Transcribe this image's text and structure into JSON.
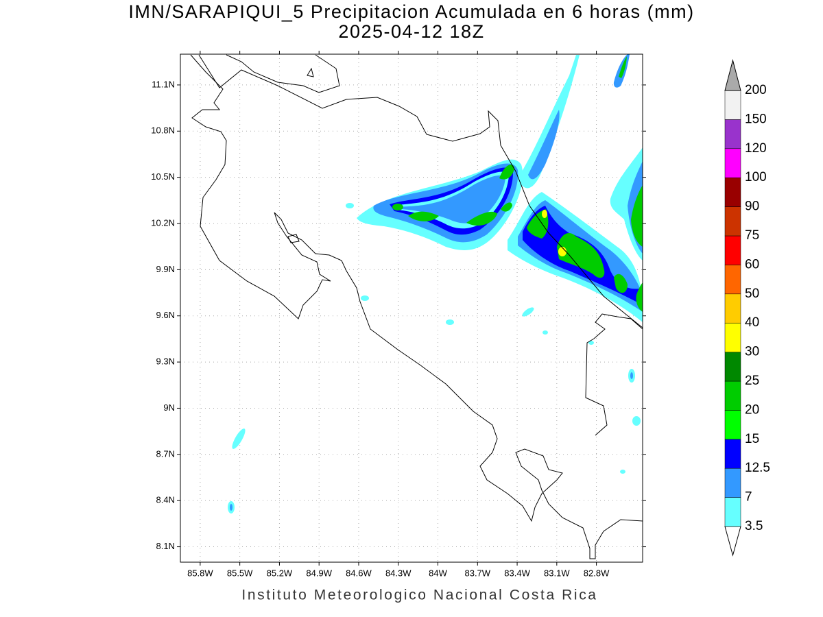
{
  "title": "IMN/SARAPIQUI_5 Precipitacion Acumulada en 6 horas (mm)",
  "subtitle": "2025-04-12 18Z",
  "footer": "Instituto Meteorologico Nacional Costa Rica",
  "map": {
    "xlim": [
      -85.95,
      -82.45
    ],
    "ylim": [
      8.0,
      11.3
    ],
    "grid": true,
    "xticks": [
      {
        "value": -85.8,
        "label": "85.8W"
      },
      {
        "value": -85.5,
        "label": "85.5W"
      },
      {
        "value": -85.2,
        "label": "85.2W"
      },
      {
        "value": -84.9,
        "label": "84.9W"
      },
      {
        "value": -84.6,
        "label": "84.6W"
      },
      {
        "value": -84.3,
        "label": "84.3W"
      },
      {
        "value": -84.0,
        "label": "84W"
      },
      {
        "value": -83.7,
        "label": "83.7W"
      },
      {
        "value": -83.4,
        "label": "83.4W"
      },
      {
        "value": -83.1,
        "label": "83.1W"
      },
      {
        "value": -82.8,
        "label": "82.8W"
      }
    ],
    "yticks": [
      {
        "value": 8.1,
        "label": "8.1N"
      },
      {
        "value": 8.4,
        "label": "8.4N"
      },
      {
        "value": 8.7,
        "label": "8.7N"
      },
      {
        "value": 9.0,
        "label": "9N"
      },
      {
        "value": 9.3,
        "label": "9.3N"
      },
      {
        "value": 9.6,
        "label": "9.6N"
      },
      {
        "value": 9.9,
        "label": "9.9N"
      },
      {
        "value": 10.2,
        "label": "10.2N"
      },
      {
        "value": 10.5,
        "label": "10.5N"
      },
      {
        "value": 10.8,
        "label": "10.8N"
      },
      {
        "value": 11.1,
        "label": "11.1N"
      }
    ]
  },
  "colorbar": {
    "levels": [
      3.5,
      7,
      12.5,
      15,
      20,
      25,
      30,
      40,
      50,
      60,
      75,
      90,
      100,
      120,
      150,
      200
    ],
    "colors": [
      "#ffffff",
      "#66ffff",
      "#3399ff",
      "#0000ff",
      "#00ff00",
      "#00cc00",
      "#008800",
      "#ffff00",
      "#ffcc00",
      "#ff6600",
      "#ff0000",
      "#cc3300",
      "#990000",
      "#ff00ff",
      "#9933cc",
      "#f2f2f2",
      "#aaaaaa"
    ]
  }
}
